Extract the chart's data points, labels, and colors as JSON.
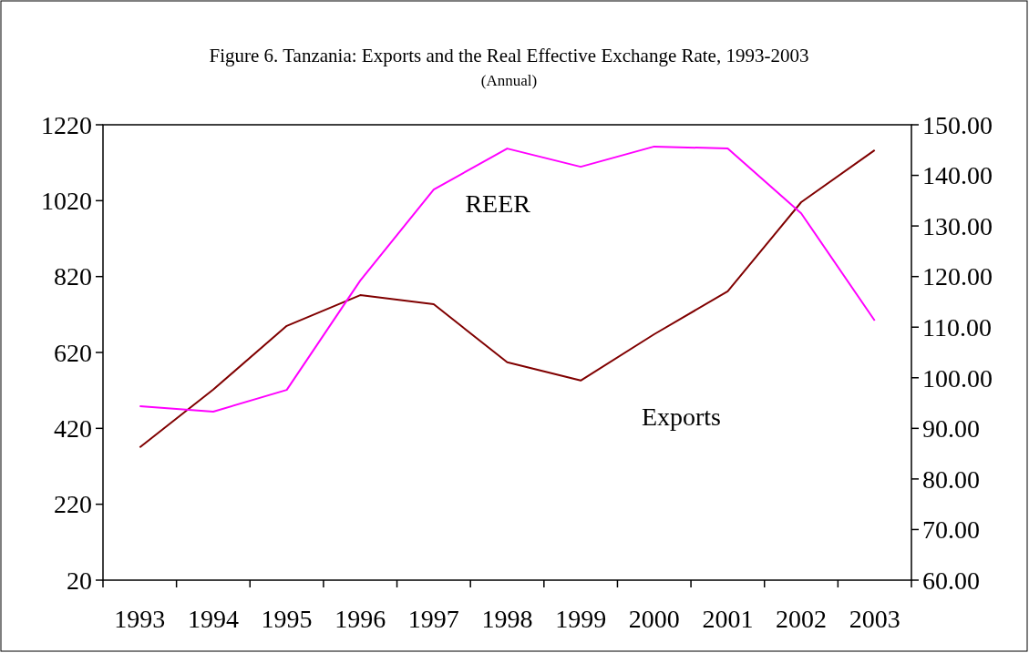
{
  "chart_data": {
    "type": "line",
    "title": "Figure 6. Tanzania: Exports and the Real Effective Exchange Rate, 1993-2003",
    "subtitle": "(Annual)",
    "categories": [
      "1993",
      "1994",
      "1995",
      "1996",
      "1997",
      "1998",
      "1999",
      "2000",
      "2001",
      "2002",
      "2003"
    ],
    "series": [
      {
        "name": "Exports",
        "color": "#800000",
        "values": [
          370,
          522,
          690,
          771,
          747,
          594,
          546,
          668,
          781,
          1016,
          1153
        ]
      },
      {
        "name": "REER",
        "color": "#ff00ff",
        "axis": "y2",
        "values": [
          94.4,
          93.3,
          97.6,
          119.2,
          137.2,
          145.3,
          141.7,
          145.7,
          145.3,
          132.5,
          111.3
        ]
      }
    ],
    "ylim": [
      20,
      1220
    ],
    "yticks": [
      20,
      220,
      420,
      620,
      820,
      1020,
      1220
    ],
    "y2lim": [
      60,
      150
    ],
    "y2ticks": [
      {
        "value": 60,
        "label": "60.00"
      },
      {
        "value": 70,
        "label": "70.00"
      },
      {
        "value": 80,
        "label": "80.00"
      },
      {
        "value": 90,
        "label": "90.00"
      },
      {
        "value": 100,
        "label": "100.00"
      },
      {
        "value": 110,
        "label": "110.00"
      },
      {
        "value": 120,
        "label": "120.00"
      },
      {
        "value": 130,
        "label": "130.00"
      },
      {
        "value": 140,
        "label": "140.00"
      },
      {
        "value": 150,
        "label": "150.00"
      }
    ],
    "grid": false,
    "legend": false,
    "marker": "none",
    "line_style": "solid"
  }
}
